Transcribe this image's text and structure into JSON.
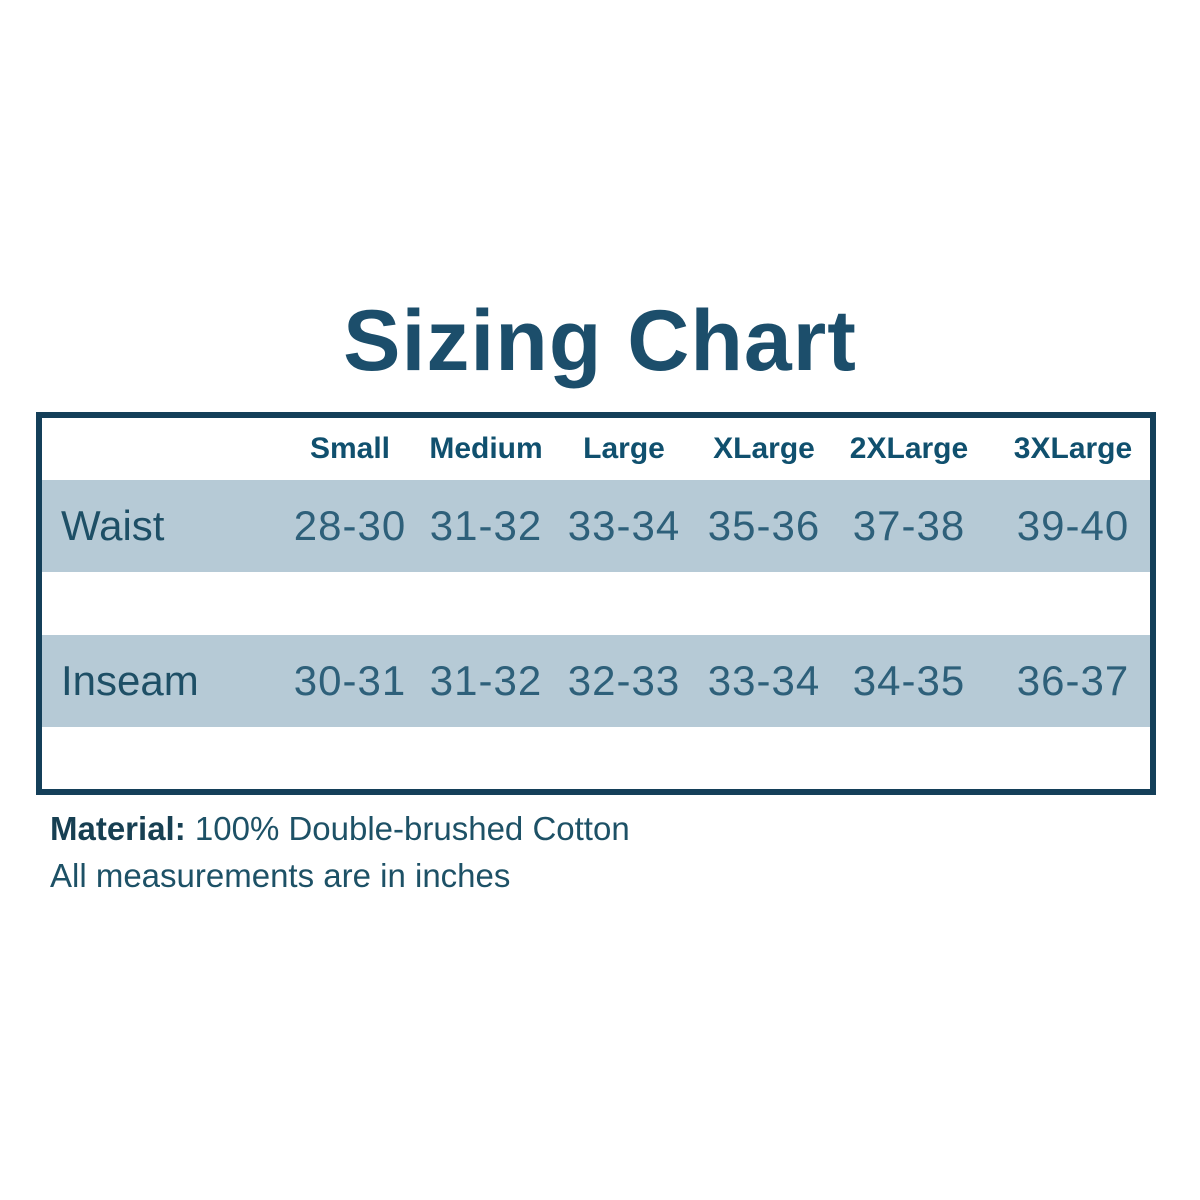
{
  "title": "Sizing Chart",
  "table": {
    "columns": [
      "Small",
      "Medium",
      "Large",
      "XLarge",
      "2XLarge",
      "3XLarge"
    ],
    "rows": [
      {
        "label": "Waist",
        "values": [
          "28-30",
          "31-32",
          "33-34",
          "35-36",
          "37-38",
          "39-40"
        ]
      },
      {
        "label": "Inseam",
        "values": [
          "30-31",
          "31-32",
          "32-33",
          "33-34",
          "34-35",
          "36-37"
        ]
      }
    ]
  },
  "footer": {
    "material_label": "Material:",
    "material_value": " 100% Double-brushed Cotton",
    "note": "All measurements are in inches"
  },
  "colors": {
    "accent_teal": "#1c4e6b",
    "header_text": "#10506e",
    "value_text": "#2e607a",
    "row_band": "#b6cad6",
    "table_border": "#143f59",
    "background": "#ffffff"
  },
  "chart_data": {
    "type": "table",
    "title": "Sizing Chart",
    "columns": [
      "",
      "Small",
      "Medium",
      "Large",
      "XLarge",
      "2XLarge",
      "3XLarge"
    ],
    "rows": [
      [
        "Waist",
        "28-30",
        "31-32",
        "33-34",
        "35-36",
        "37-38",
        "39-40"
      ],
      [
        "Inseam",
        "30-31",
        "31-32",
        "32-33",
        "33-34",
        "34-35",
        "36-37"
      ]
    ],
    "units": "inches",
    "material": "100% Double-brushed Cotton"
  }
}
